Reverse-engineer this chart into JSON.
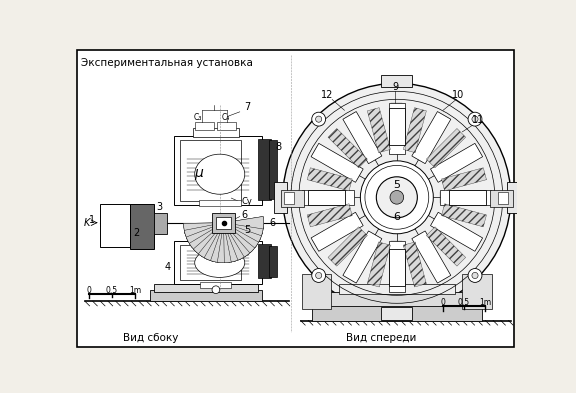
{
  "title": "Экспериментальная установка",
  "bg_color": "#f2efe8",
  "white": "#ffffff",
  "black": "#000000",
  "gray_light": "#e0e0e0",
  "gray_med": "#aaaaaa",
  "gray_dark": "#666666",
  "gray_darker": "#333333",
  "label_side": "Вид сбоку",
  "label_front": "Вид спереди",
  "fig_w": 5.76,
  "fig_h": 3.93,
  "dpi": 100
}
